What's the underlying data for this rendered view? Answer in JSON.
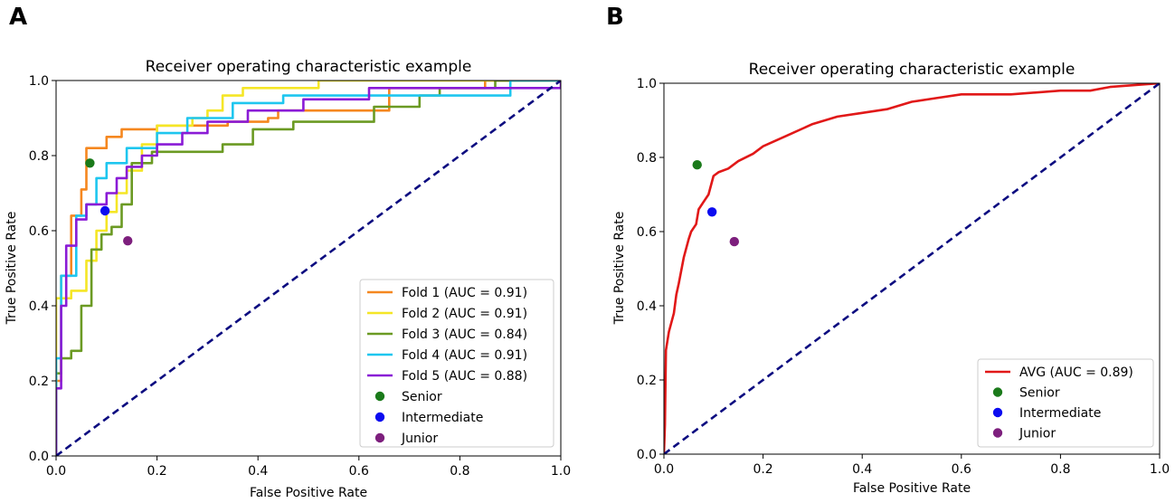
{
  "panels": [
    {
      "letter": "A",
      "chart_data": {
        "type": "line",
        "title": "Receiver operating characteristic example",
        "xlabel": "False Positive Rate",
        "ylabel": "True Positive Rate",
        "xlim": [
          0,
          1
        ],
        "ylim": [
          0,
          1
        ],
        "xticks": [
          "0.0",
          "0.2",
          "0.4",
          "0.6",
          "0.8",
          "1.0"
        ],
        "yticks": [
          "0.0",
          "0.2",
          "0.4",
          "0.6",
          "0.8",
          "1.0"
        ],
        "legend_position": "lower-right",
        "series": [
          {
            "name": "Fold 1 (AUC = 0.91)",
            "color": "#f5871f",
            "points": [
              [
                0,
                0
              ],
              [
                0,
                0.2
              ],
              [
                0.01,
                0.2
              ],
              [
                0.01,
                0.48
              ],
              [
                0.03,
                0.48
              ],
              [
                0.03,
                0.64
              ],
              [
                0.05,
                0.64
              ],
              [
                0.05,
                0.71
              ],
              [
                0.06,
                0.71
              ],
              [
                0.06,
                0.82
              ],
              [
                0.1,
                0.82
              ],
              [
                0.1,
                0.85
              ],
              [
                0.13,
                0.85
              ],
              [
                0.13,
                0.87
              ],
              [
                0.2,
                0.87
              ],
              [
                0.2,
                0.88
              ],
              [
                0.34,
                0.88
              ],
              [
                0.34,
                0.89
              ],
              [
                0.42,
                0.89
              ],
              [
                0.42,
                0.9
              ],
              [
                0.44,
                0.9
              ],
              [
                0.44,
                0.92
              ],
              [
                0.66,
                0.92
              ],
              [
                0.66,
                0.98
              ],
              [
                0.85,
                0.98
              ],
              [
                0.85,
                1.0
              ],
              [
                1,
                1
              ]
            ]
          },
          {
            "name": "Fold 2 (AUC = 0.91)",
            "color": "#f5e626",
            "points": [
              [
                0,
                0
              ],
              [
                0,
                0.42
              ],
              [
                0.03,
                0.42
              ],
              [
                0.03,
                0.44
              ],
              [
                0.06,
                0.44
              ],
              [
                0.06,
                0.52
              ],
              [
                0.08,
                0.52
              ],
              [
                0.08,
                0.6
              ],
              [
                0.1,
                0.6
              ],
              [
                0.1,
                0.65
              ],
              [
                0.12,
                0.65
              ],
              [
                0.12,
                0.7
              ],
              [
                0.14,
                0.7
              ],
              [
                0.14,
                0.76
              ],
              [
                0.17,
                0.76
              ],
              [
                0.17,
                0.83
              ],
              [
                0.2,
                0.83
              ],
              [
                0.2,
                0.88
              ],
              [
                0.27,
                0.88
              ],
              [
                0.27,
                0.9
              ],
              [
                0.3,
                0.9
              ],
              [
                0.3,
                0.92
              ],
              [
                0.33,
                0.92
              ],
              [
                0.33,
                0.96
              ],
              [
                0.37,
                0.96
              ],
              [
                0.37,
                0.98
              ],
              [
                0.52,
                0.98
              ],
              [
                0.52,
                1.0
              ],
              [
                1,
                1
              ]
            ]
          },
          {
            "name": "Fold 3 (AUC = 0.84)",
            "color": "#6b9a23",
            "points": [
              [
                0,
                0
              ],
              [
                0,
                0.22
              ],
              [
                0.01,
                0.22
              ],
              [
                0.01,
                0.26
              ],
              [
                0.03,
                0.26
              ],
              [
                0.03,
                0.28
              ],
              [
                0.05,
                0.28
              ],
              [
                0.05,
                0.4
              ],
              [
                0.07,
                0.4
              ],
              [
                0.07,
                0.55
              ],
              [
                0.09,
                0.55
              ],
              [
                0.09,
                0.59
              ],
              [
                0.11,
                0.59
              ],
              [
                0.11,
                0.61
              ],
              [
                0.13,
                0.61
              ],
              [
                0.13,
                0.67
              ],
              [
                0.15,
                0.67
              ],
              [
                0.15,
                0.78
              ],
              [
                0.19,
                0.78
              ],
              [
                0.19,
                0.81
              ],
              [
                0.33,
                0.81
              ],
              [
                0.33,
                0.83
              ],
              [
                0.39,
                0.83
              ],
              [
                0.39,
                0.87
              ],
              [
                0.47,
                0.87
              ],
              [
                0.47,
                0.89
              ],
              [
                0.63,
                0.89
              ],
              [
                0.63,
                0.93
              ],
              [
                0.72,
                0.93
              ],
              [
                0.72,
                0.96
              ],
              [
                0.76,
                0.96
              ],
              [
                0.76,
                0.98
              ],
              [
                0.87,
                0.98
              ],
              [
                0.87,
                1.0
              ],
              [
                1,
                1
              ]
            ]
          },
          {
            "name": "Fold 4 (AUC = 0.91)",
            "color": "#1ec6ef",
            "points": [
              [
                0,
                0
              ],
              [
                0,
                0.26
              ],
              [
                0.01,
                0.26
              ],
              [
                0.01,
                0.48
              ],
              [
                0.04,
                0.48
              ],
              [
                0.04,
                0.64
              ],
              [
                0.06,
                0.64
              ],
              [
                0.06,
                0.67
              ],
              [
                0.08,
                0.67
              ],
              [
                0.08,
                0.74
              ],
              [
                0.1,
                0.74
              ],
              [
                0.1,
                0.78
              ],
              [
                0.14,
                0.78
              ],
              [
                0.14,
                0.82
              ],
              [
                0.2,
                0.82
              ],
              [
                0.2,
                0.86
              ],
              [
                0.26,
                0.86
              ],
              [
                0.26,
                0.9
              ],
              [
                0.35,
                0.9
              ],
              [
                0.35,
                0.94
              ],
              [
                0.45,
                0.94
              ],
              [
                0.45,
                0.96
              ],
              [
                0.9,
                0.96
              ],
              [
                0.9,
                1.0
              ],
              [
                1,
                1
              ]
            ]
          },
          {
            "name": "Fold 5 (AUC = 0.88)",
            "color": "#8a1bd6",
            "points": [
              [
                0,
                0
              ],
              [
                0,
                0.18
              ],
              [
                0.01,
                0.18
              ],
              [
                0.01,
                0.4
              ],
              [
                0.02,
                0.4
              ],
              [
                0.02,
                0.56
              ],
              [
                0.04,
                0.56
              ],
              [
                0.04,
                0.63
              ],
              [
                0.06,
                0.63
              ],
              [
                0.06,
                0.67
              ],
              [
                0.1,
                0.67
              ],
              [
                0.1,
                0.7
              ],
              [
                0.12,
                0.7
              ],
              [
                0.12,
                0.74
              ],
              [
                0.14,
                0.74
              ],
              [
                0.14,
                0.77
              ],
              [
                0.17,
                0.77
              ],
              [
                0.17,
                0.8
              ],
              [
                0.2,
                0.8
              ],
              [
                0.2,
                0.83
              ],
              [
                0.25,
                0.83
              ],
              [
                0.25,
                0.86
              ],
              [
                0.3,
                0.86
              ],
              [
                0.3,
                0.89
              ],
              [
                0.38,
                0.89
              ],
              [
                0.38,
                0.92
              ],
              [
                0.49,
                0.92
              ],
              [
                0.49,
                0.95
              ],
              [
                0.62,
                0.95
              ],
              [
                0.62,
                0.98
              ],
              [
                1,
                0.98
              ],
              [
                1,
                1
              ]
            ]
          }
        ],
        "reference_line": {
          "color": "#0d0d80",
          "style": "dashed",
          "points": [
            [
              0,
              0
            ],
            [
              1,
              1
            ]
          ]
        },
        "markers": [
          {
            "name": "Senior",
            "color": "#1a7a1a",
            "x": 0.067,
            "y": 0.78
          },
          {
            "name": "Intermediate",
            "color": "#0b0bf0",
            "x": 0.097,
            "y": 0.653
          },
          {
            "name": "Junior",
            "color": "#7d1f7d",
            "x": 0.142,
            "y": 0.573
          }
        ]
      }
    },
    {
      "letter": "B",
      "chart_data": {
        "type": "line",
        "title": "Receiver operating characteristic example",
        "xlabel": "False Positive Rate",
        "ylabel": "True Positive Rate",
        "xlim": [
          0,
          1
        ],
        "ylim": [
          0,
          1
        ],
        "xticks": [
          "0.0",
          "0.2",
          "0.4",
          "0.6",
          "0.8",
          "1.0"
        ],
        "yticks": [
          "0.0",
          "0.2",
          "0.4",
          "0.6",
          "0.8",
          "1.0"
        ],
        "legend_position": "lower-right",
        "series": [
          {
            "name": "AVG (AUC = 0.89)",
            "color": "#e11818",
            "points": [
              [
                0,
                0
              ],
              [
                0.002,
                0.08
              ],
              [
                0.004,
                0.28
              ],
              [
                0.01,
                0.33
              ],
              [
                0.02,
                0.38
              ],
              [
                0.025,
                0.43
              ],
              [
                0.03,
                0.46
              ],
              [
                0.04,
                0.53
              ],
              [
                0.05,
                0.58
              ],
              [
                0.055,
                0.6
              ],
              [
                0.065,
                0.62
              ],
              [
                0.07,
                0.66
              ],
              [
                0.08,
                0.68
              ],
              [
                0.09,
                0.7
              ],
              [
                0.1,
                0.75
              ],
              [
                0.11,
                0.76
              ],
              [
                0.13,
                0.77
              ],
              [
                0.15,
                0.79
              ],
              [
                0.18,
                0.81
              ],
              [
                0.2,
                0.83
              ],
              [
                0.25,
                0.86
              ],
              [
                0.3,
                0.89
              ],
              [
                0.35,
                0.91
              ],
              [
                0.4,
                0.92
              ],
              [
                0.45,
                0.93
              ],
              [
                0.5,
                0.95
              ],
              [
                0.55,
                0.96
              ],
              [
                0.6,
                0.97
              ],
              [
                0.7,
                0.97
              ],
              [
                0.8,
                0.98
              ],
              [
                0.86,
                0.98
              ],
              [
                0.9,
                0.99
              ],
              [
                1,
                1
              ]
            ]
          }
        ],
        "reference_line": {
          "color": "#0d0d80",
          "style": "dashed",
          "points": [
            [
              0,
              0
            ],
            [
              1,
              1
            ]
          ]
        },
        "markers": [
          {
            "name": "Senior",
            "color": "#1a7a1a",
            "x": 0.067,
            "y": 0.78
          },
          {
            "name": "Intermediate",
            "color": "#0b0bf0",
            "x": 0.097,
            "y": 0.653
          },
          {
            "name": "Junior",
            "color": "#7d1f7d",
            "x": 0.142,
            "y": 0.573
          }
        ]
      }
    }
  ]
}
